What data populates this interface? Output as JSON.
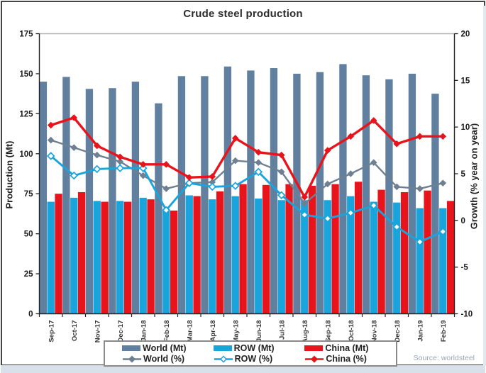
{
  "window": {
    "title": "Crude steel production",
    "source_note": "Source: worldsteel"
  },
  "chart_data": {
    "type": "bar+line",
    "title": "Crude steel production",
    "source": "Source: worldsteel",
    "categories": [
      "Sep-17",
      "Oct-17",
      "Nov-17",
      "Dec-17",
      "Jan-18",
      "Feb-18",
      "Mar-18",
      "Apr-18",
      "May-18",
      "Jun-18",
      "Jul-18",
      "Aug-18",
      "Sep-18",
      "Oct-18",
      "Nov-18",
      "Dec-18",
      "Jan-19",
      "Feb-19"
    ],
    "left_axis": {
      "label": "Production (Mt)",
      "min": 0,
      "max": 175,
      "step": 25
    },
    "right_axis": {
      "label": "Growth (% year on year)",
      "min": -10,
      "max": 20,
      "step": 5
    },
    "grid": "top-border-only",
    "legend_position": "bottom",
    "bar_series": [
      {
        "name": "World (Mt)",
        "axis": "left",
        "color_key": "world_bar",
        "values": [
          145,
          148,
          140.5,
          141,
          145,
          131.5,
          148.5,
          148.5,
          154.5,
          152,
          153.5,
          150,
          151,
          156,
          149,
          146.5,
          150,
          137.5
        ]
      },
      {
        "name": "ROW (Mt)",
        "axis": "left",
        "color_key": "row_bar",
        "values": [
          70,
          72.5,
          70.5,
          70.5,
          72.5,
          65.5,
          74,
          71.5,
          73.5,
          72,
          71,
          71,
          71,
          73.5,
          70,
          69.5,
          66,
          66
        ]
      },
      {
        "name": "China (Mt)",
        "axis": "left",
        "color_key": "china_bar",
        "values": [
          75,
          76,
          70,
          70,
          71.5,
          64.5,
          73.5,
          76.5,
          81,
          80.5,
          81,
          80,
          81,
          82.5,
          77.5,
          76,
          77,
          70.5
        ]
      }
    ],
    "line_series": [
      {
        "name": "World (%)",
        "axis": "right",
        "color_key": "world_line",
        "marker": "filled-diamond",
        "values": [
          8.6,
          7.8,
          7.0,
          6.3,
          4.8,
          3.4,
          4.0,
          4.1,
          6.4,
          6.2,
          5.2,
          1.8,
          3.9,
          5.0,
          6.2,
          3.6,
          3.4,
          4.0
        ]
      },
      {
        "name": "ROW (%)",
        "axis": "right",
        "color_key": "row_line",
        "marker": "open-diamond",
        "values": [
          6.9,
          4.8,
          5.5,
          5.6,
          5.6,
          1.1,
          4.0,
          3.6,
          3.7,
          5.2,
          2.7,
          0.6,
          0.2,
          0.8,
          1.6,
          -0.7,
          -2.3,
          -1.2
        ]
      },
      {
        "name": "China (%)",
        "axis": "right",
        "color_key": "china_line",
        "marker": "filled-diamond",
        "values": [
          10.2,
          11.0,
          8.0,
          6.8,
          6.0,
          6.0,
          4.6,
          4.7,
          8.8,
          7.3,
          7.0,
          2.5,
          7.5,
          9.0,
          10.7,
          8.2,
          9.0,
          9.0
        ]
      }
    ],
    "legend": [
      {
        "label": "World (Mt)",
        "swatch": "bar",
        "color_key": "world_bar"
      },
      {
        "label": "ROW (Mt)",
        "swatch": "bar",
        "color_key": "row_bar"
      },
      {
        "label": "China (Mt)",
        "swatch": "bar",
        "color_key": "china_bar"
      },
      {
        "label": "World (%)",
        "swatch": "line",
        "color_key": "world_line",
        "marker": "filled-diamond"
      },
      {
        "label": "ROW (%)",
        "swatch": "line",
        "color_key": "row_line",
        "marker": "open-diamond"
      },
      {
        "label": "China (%)",
        "swatch": "line",
        "color_key": "china_line",
        "marker": "filled-diamond"
      }
    ],
    "colors": {
      "world_bar": "#61809f",
      "row_bar": "#19a5dc",
      "china_bar": "#e8141c",
      "world_line": "#6e8091",
      "row_line": "#19a5dc",
      "china_line": "#e8141c",
      "axis": "#222222",
      "grid": "#b3b3b3",
      "tick_label": "#1a1a1a",
      "source": "#9aa4ae"
    }
  }
}
